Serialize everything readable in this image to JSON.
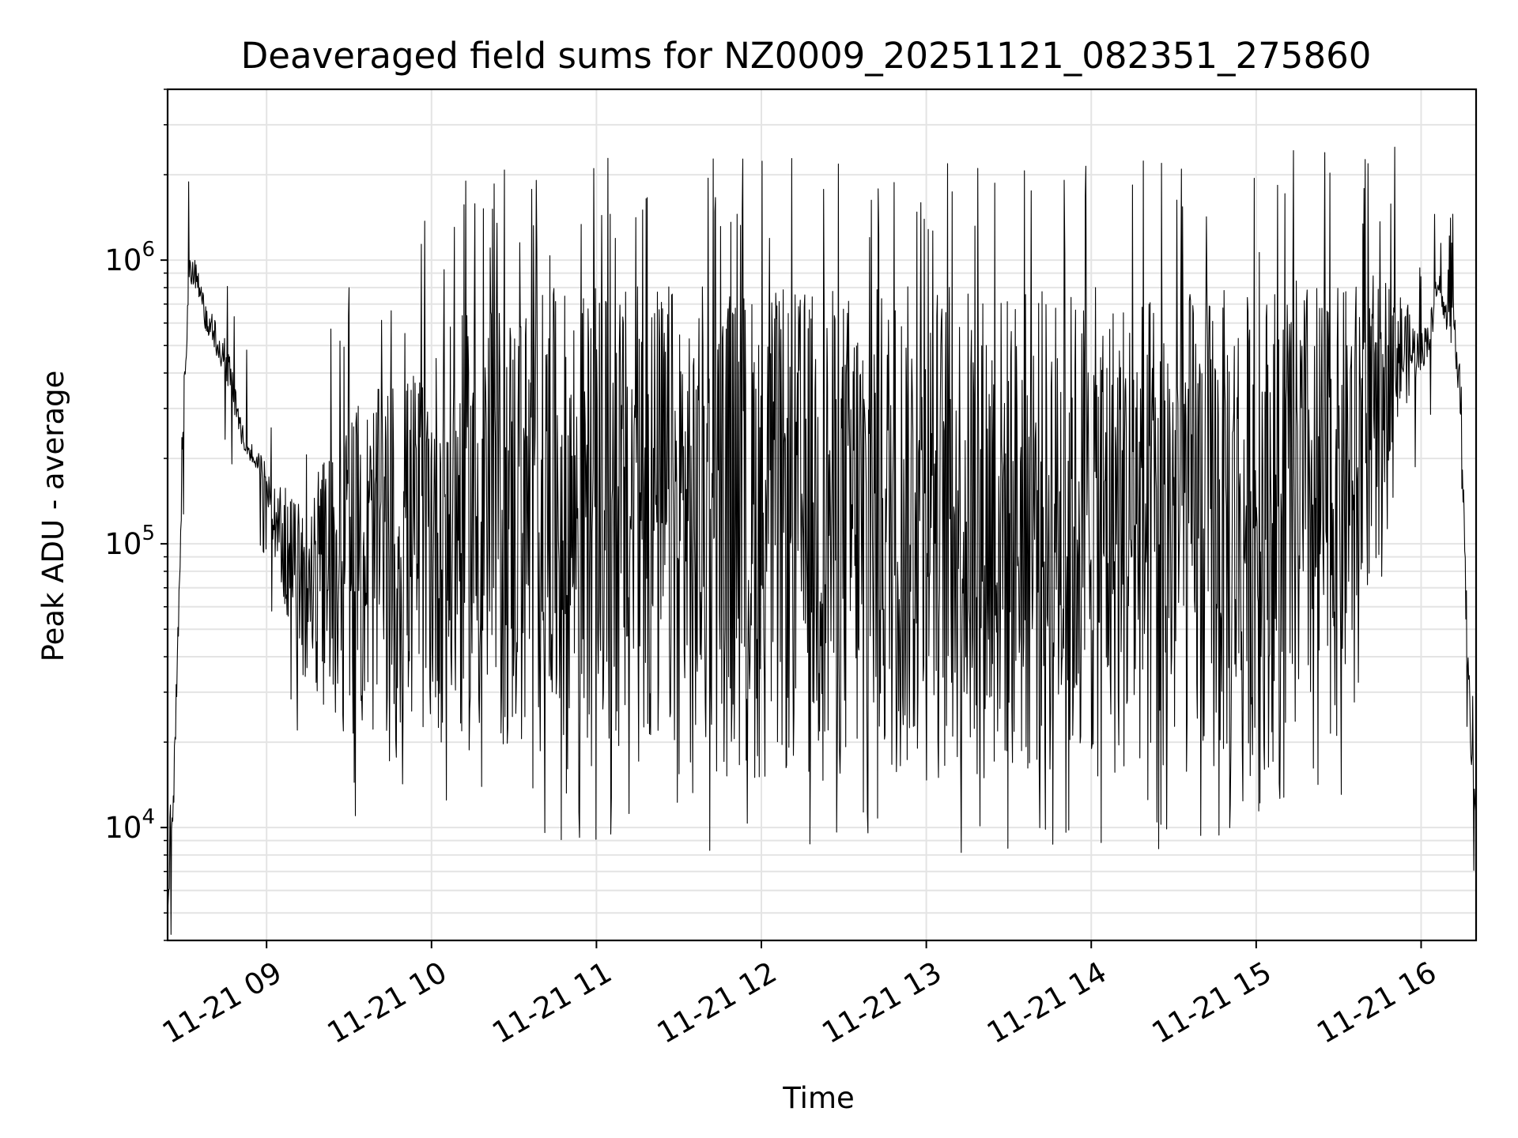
{
  "chart_data": {
    "type": "line",
    "title": "Deaveraged field sums for NZ0009_20251121_082351_275860",
    "xlabel": "Time",
    "ylabel": "Peak ADU - average",
    "x_range": [
      "11-21 08:24",
      "11-21 16:20"
    ],
    "ylim": [
      4000,
      4000000
    ],
    "yscale": "log",
    "grid": true,
    "x_ticks": [
      "11-21 09",
      "11-21 10",
      "11-21 11",
      "11-21 12",
      "11-21 13",
      "11-21 14",
      "11-21 15",
      "11-21 16"
    ],
    "y_ticks": [
      {
        "base": "10",
        "exp": "4",
        "value": 10000
      },
      {
        "base": "10",
        "exp": "5",
        "value": 100000
      },
      {
        "base": "10",
        "exp": "6",
        "value": 1000000
      }
    ],
    "series": [
      {
        "color": "#000000",
        "x": [
          "08:24",
          "08:26",
          "08:28",
          "08:30",
          "08:32",
          "08:34",
          "08:36",
          "08:38",
          "08:40",
          "08:42",
          "08:44",
          "08:46",
          "08:48",
          "08:50",
          "08:52",
          "08:54",
          "08:56",
          "08:58",
          "09:00",
          "09:03",
          "09:06",
          "09:09",
          "09:12",
          "09:15",
          "09:20",
          "09:30",
          "09:40",
          "09:50",
          "10:00",
          "10:15",
          "10:30",
          "10:45",
          "11:00",
          "11:30",
          "12:00",
          "12:30",
          "13:00",
          "13:30",
          "14:00",
          "14:30",
          "15:00",
          "15:15",
          "15:30",
          "15:40",
          "15:50",
          "16:00",
          "16:04",
          "16:06",
          "16:08",
          "16:10",
          "16:12",
          "16:14",
          "16:16",
          "16:18",
          "16:20"
        ],
        "upper": [
          5000,
          13000,
          70000,
          400000,
          1000000,
          1100000,
          900000,
          700000,
          650000,
          600000,
          550000,
          500000,
          400000,
          300000,
          250000,
          230000,
          220000,
          210000,
          200000,
          180000,
          160000,
          150000,
          140000,
          130000,
          200000,
          300000,
          350000,
          400000,
          500000,
          700000,
          750000,
          800000,
          800000,
          850000,
          800000,
          800000,
          850000,
          800000,
          800000,
          800000,
          800000,
          900000,
          800000,
          900000,
          900000,
          550000,
          700000,
          1000000,
          750000,
          700000,
          750000,
          500000,
          100000,
          25000,
          11000
        ],
        "lower": [
          5000,
          9000,
          50000,
          300000,
          800000,
          800000,
          700000,
          550000,
          500000,
          450000,
          400000,
          350000,
          300000,
          230000,
          200000,
          190000,
          180000,
          170000,
          150000,
          90000,
          65000,
          45000,
          35000,
          30000,
          25000,
          20000,
          20000,
          20000,
          20000,
          18000,
          17000,
          16000,
          16000,
          15000,
          14000,
          14000,
          14000,
          14000,
          14000,
          14000,
          15000,
          18000,
          20000,
          60000,
          250000,
          400000,
          500000,
          800000,
          600000,
          500000,
          500000,
          300000,
          60000,
          18000,
          11000
        ]
      }
    ]
  }
}
